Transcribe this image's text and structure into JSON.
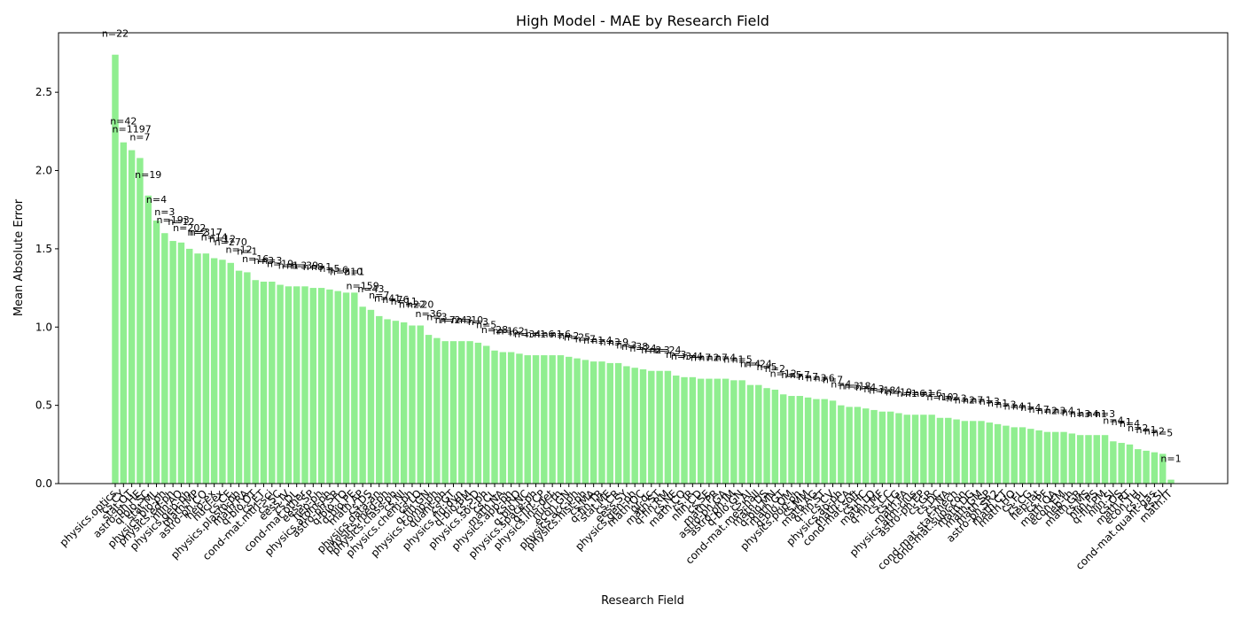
{
  "chart_data": {
    "type": "bar",
    "title": "High Model - MAE by Research Field",
    "xlabel": "Research Field",
    "ylabel": "Mean Absolute Error",
    "ylim": [
      0,
      2.88
    ],
    "yticks": [
      "0.0",
      "0.5",
      "1.0",
      "1.5",
      "2.0",
      "2.5"
    ],
    "bar_color": "#90ee90",
    "grid": false,
    "legend": "none",
    "values": [
      2.74,
      2.18,
      2.13,
      2.08,
      1.84,
      1.68,
      1.6,
      1.55,
      1.54,
      1.5,
      1.47,
      1.47,
      1.44,
      1.43,
      1.41,
      1.36,
      1.35,
      1.3,
      1.29,
      1.29,
      1.27,
      1.26,
      1.26,
      1.26,
      1.25,
      1.25,
      1.24,
      1.23,
      1.22,
      1.22,
      1.13,
      1.11,
      1.07,
      1.05,
      1.04,
      1.03,
      1.01,
      1.01,
      0.95,
      0.93,
      0.91,
      0.91,
      0.91,
      0.91,
      0.9,
      0.88,
      0.85,
      0.84,
      0.84,
      0.83,
      0.82,
      0.82,
      0.82,
      0.82,
      0.82,
      0.81,
      0.8,
      0.79,
      0.78,
      0.78,
      0.77,
      0.77,
      0.75,
      0.74,
      0.73,
      0.72,
      0.72,
      0.72,
      0.69,
      0.68,
      0.68,
      0.67,
      0.67,
      0.67,
      0.67,
      0.66,
      0.66,
      0.63,
      0.63,
      0.61,
      0.6,
      0.57,
      0.56,
      0.56,
      0.55,
      0.54,
      0.54,
      0.53,
      0.5,
      0.49,
      0.49,
      0.48,
      0.47,
      0.46,
      0.46,
      0.45,
      0.44,
      0.44,
      0.44,
      0.44,
      0.42,
      0.42,
      0.41,
      0.4,
      0.4,
      0.4,
      0.39,
      0.38,
      0.37,
      0.36,
      0.36,
      0.35,
      0.34,
      0.33,
      0.33,
      0.33,
      0.32,
      0.31,
      0.31,
      0.31,
      0.31,
      0.27,
      0.26,
      0.25,
      0.22,
      0.21,
      0.2,
      0.19,
      0.025
    ],
    "n_labels": [
      "n=22",
      "n=42",
      "n=1197",
      "n=7",
      "n=19",
      "n=4",
      "n=3",
      "n=193",
      "n=12",
      "n=202",
      "n=2",
      "n=317",
      "n=14",
      "n=12",
      "n=270",
      "n=12",
      "n=1",
      "n=16",
      "n=3",
      "n=3",
      "n=19",
      "n=1",
      "n=3",
      "n=39",
      "n=8",
      "n=1",
      "n=5",
      "n=6",
      "n=310",
      "n=1",
      "n=159",
      "n=43",
      "n=7",
      "n=41",
      "n=76",
      "n=11",
      "n=22",
      "n=20",
      "n=36",
      "n=3",
      "n=7",
      "n=24",
      "n=3",
      "n=10",
      "n=3",
      "n=5",
      "n=28",
      "n=1",
      "n=62",
      "n=1",
      "n=34",
      "n=1",
      "n=6",
      "n=1",
      "n=6",
      "n=2",
      "n=25",
      "n=7",
      "n=1",
      "n=4",
      "n=3",
      "n=9",
      "n=3",
      "n=38",
      "n=24",
      "n=2",
      "n=3",
      "n=24",
      "n=3",
      "n=34",
      "n=4",
      "n=7",
      "n=2",
      "n=7",
      "n=4",
      "n=1",
      "n=5",
      "n=4",
      "n=24",
      "n=5",
      "n=2",
      "n=12",
      "n=5",
      "n=7",
      "n=7",
      "n=3",
      "n=6",
      "n=7",
      "n=4",
      "n=3",
      "n=18",
      "n=4",
      "n=3",
      "n=18",
      "n=4",
      "n=19",
      "n=1",
      "n=6",
      "n=1",
      "n=6",
      "n=10",
      "n=2",
      "n=3",
      "n=2",
      "n=7",
      "n=1",
      "n=3",
      "n=1",
      "n=3",
      "n=4",
      "n=1",
      "n=4",
      "n=7",
      "n=2",
      "n=3",
      "n=4",
      "n=1",
      "n=3",
      "n=4",
      "n=1",
      "n=3",
      "n=4",
      "n=1",
      "n=4",
      "n=2",
      "n=1",
      "n=2",
      "n=5",
      "n=1"
    ],
    "categories": [
      "physics.optics",
      "cs.CY",
      "stat.OT",
      "astro-ph.HE",
      "q-bio.SC",
      "stat.ML",
      "physics.bio-ph",
      "physics.ed-ph",
      "nlin.AO",
      "physics.geo-ph",
      "math.MP",
      "astro-ph.CO",
      "hep-ex",
      "nucl-ex",
      "cs.CE",
      "physics.plasm-ph",
      "math.RA",
      "q-bio.OT",
      "cs.ET",
      "cond-mat.mtrl-sci",
      "cs.SC",
      "eess.IV",
      "cs.DL",
      "cond-mat.other",
      "eess.SP",
      "hep-ph",
      "physics.atom-ph",
      "astro-ph.SR",
      "q-bio.TO",
      "q-bio.PE",
      "math.AP",
      "cs.DS",
      "physics.data-an",
      "physics.med-ph",
      "physics.class-ph",
      "cs.NI",
      "physics.chem-ph",
      "cs.LO",
      "q-fin.GN",
      "physics.comp-ph",
      "quant-ph",
      "cs.GT",
      "physics.flu-dyn",
      "q-bio.BM",
      "cs.SD",
      "physics.soc-ph",
      "cs.CL",
      "math.NA",
      "physics.app-ph",
      "cs.RO",
      "q-bio.NC",
      "physics.space-ph",
      "q-fin.CP",
      "physics.ins-det",
      "nucl-th",
      "econ.GN",
      "physics.acc-ph",
      "physics.hist-ph",
      "cs.MA",
      "q-fin.TR",
      "stat.ME",
      "cs.CR",
      "eess.SY",
      "physics.gen-ph",
      "math.OC",
      "gr-qc",
      "math.ST",
      "q-fin.RM",
      "cs.NE",
      "math.CO",
      "cs.IR",
      "nlin.CD",
      "cs.SE",
      "math.PR",
      "astro-ph.GA",
      "astro-ph.IM",
      "q-bio.GN",
      "cs.AI",
      "cond-mat.mes-hall",
      "math.DS",
      "q-bio.MN",
      "math.GT",
      "q-bio.QM",
      "physics.pop-ph",
      "cs.MM",
      "math.AG",
      "q-fin.ST",
      "cs.CV",
      "physics.ao-ph",
      "math.CA",
      "cond-mat.soft",
      "cs.HC",
      "math.LO",
      "q-fin.MF",
      "cs.CC",
      "cs.LG",
      "math.FA",
      "physics.atm-clus",
      "astro-ph.EP",
      "cs.GR",
      "cs.DC",
      "cs.NA",
      "cond-mat.stat-mech",
      "cond-mat.supr-con",
      "math.DG",
      "math.GM",
      "math.SP",
      "astro-ph.SR2",
      "math.CT",
      "math.HO",
      "cs.FL",
      "cs.CG",
      "hep-lat",
      "cs.PF",
      "math.QA",
      "econ.EM",
      "hep-th",
      "math.GR",
      "cs.MS",
      "nlin.PS",
      "q-fin.PM",
      "nlin.SI",
      "cs.OS",
      "math.RT",
      "econ.TH",
      "cs.PL",
      "cond-mat.quant-gas",
      "cs.SI",
      "math.IT"
    ]
  }
}
